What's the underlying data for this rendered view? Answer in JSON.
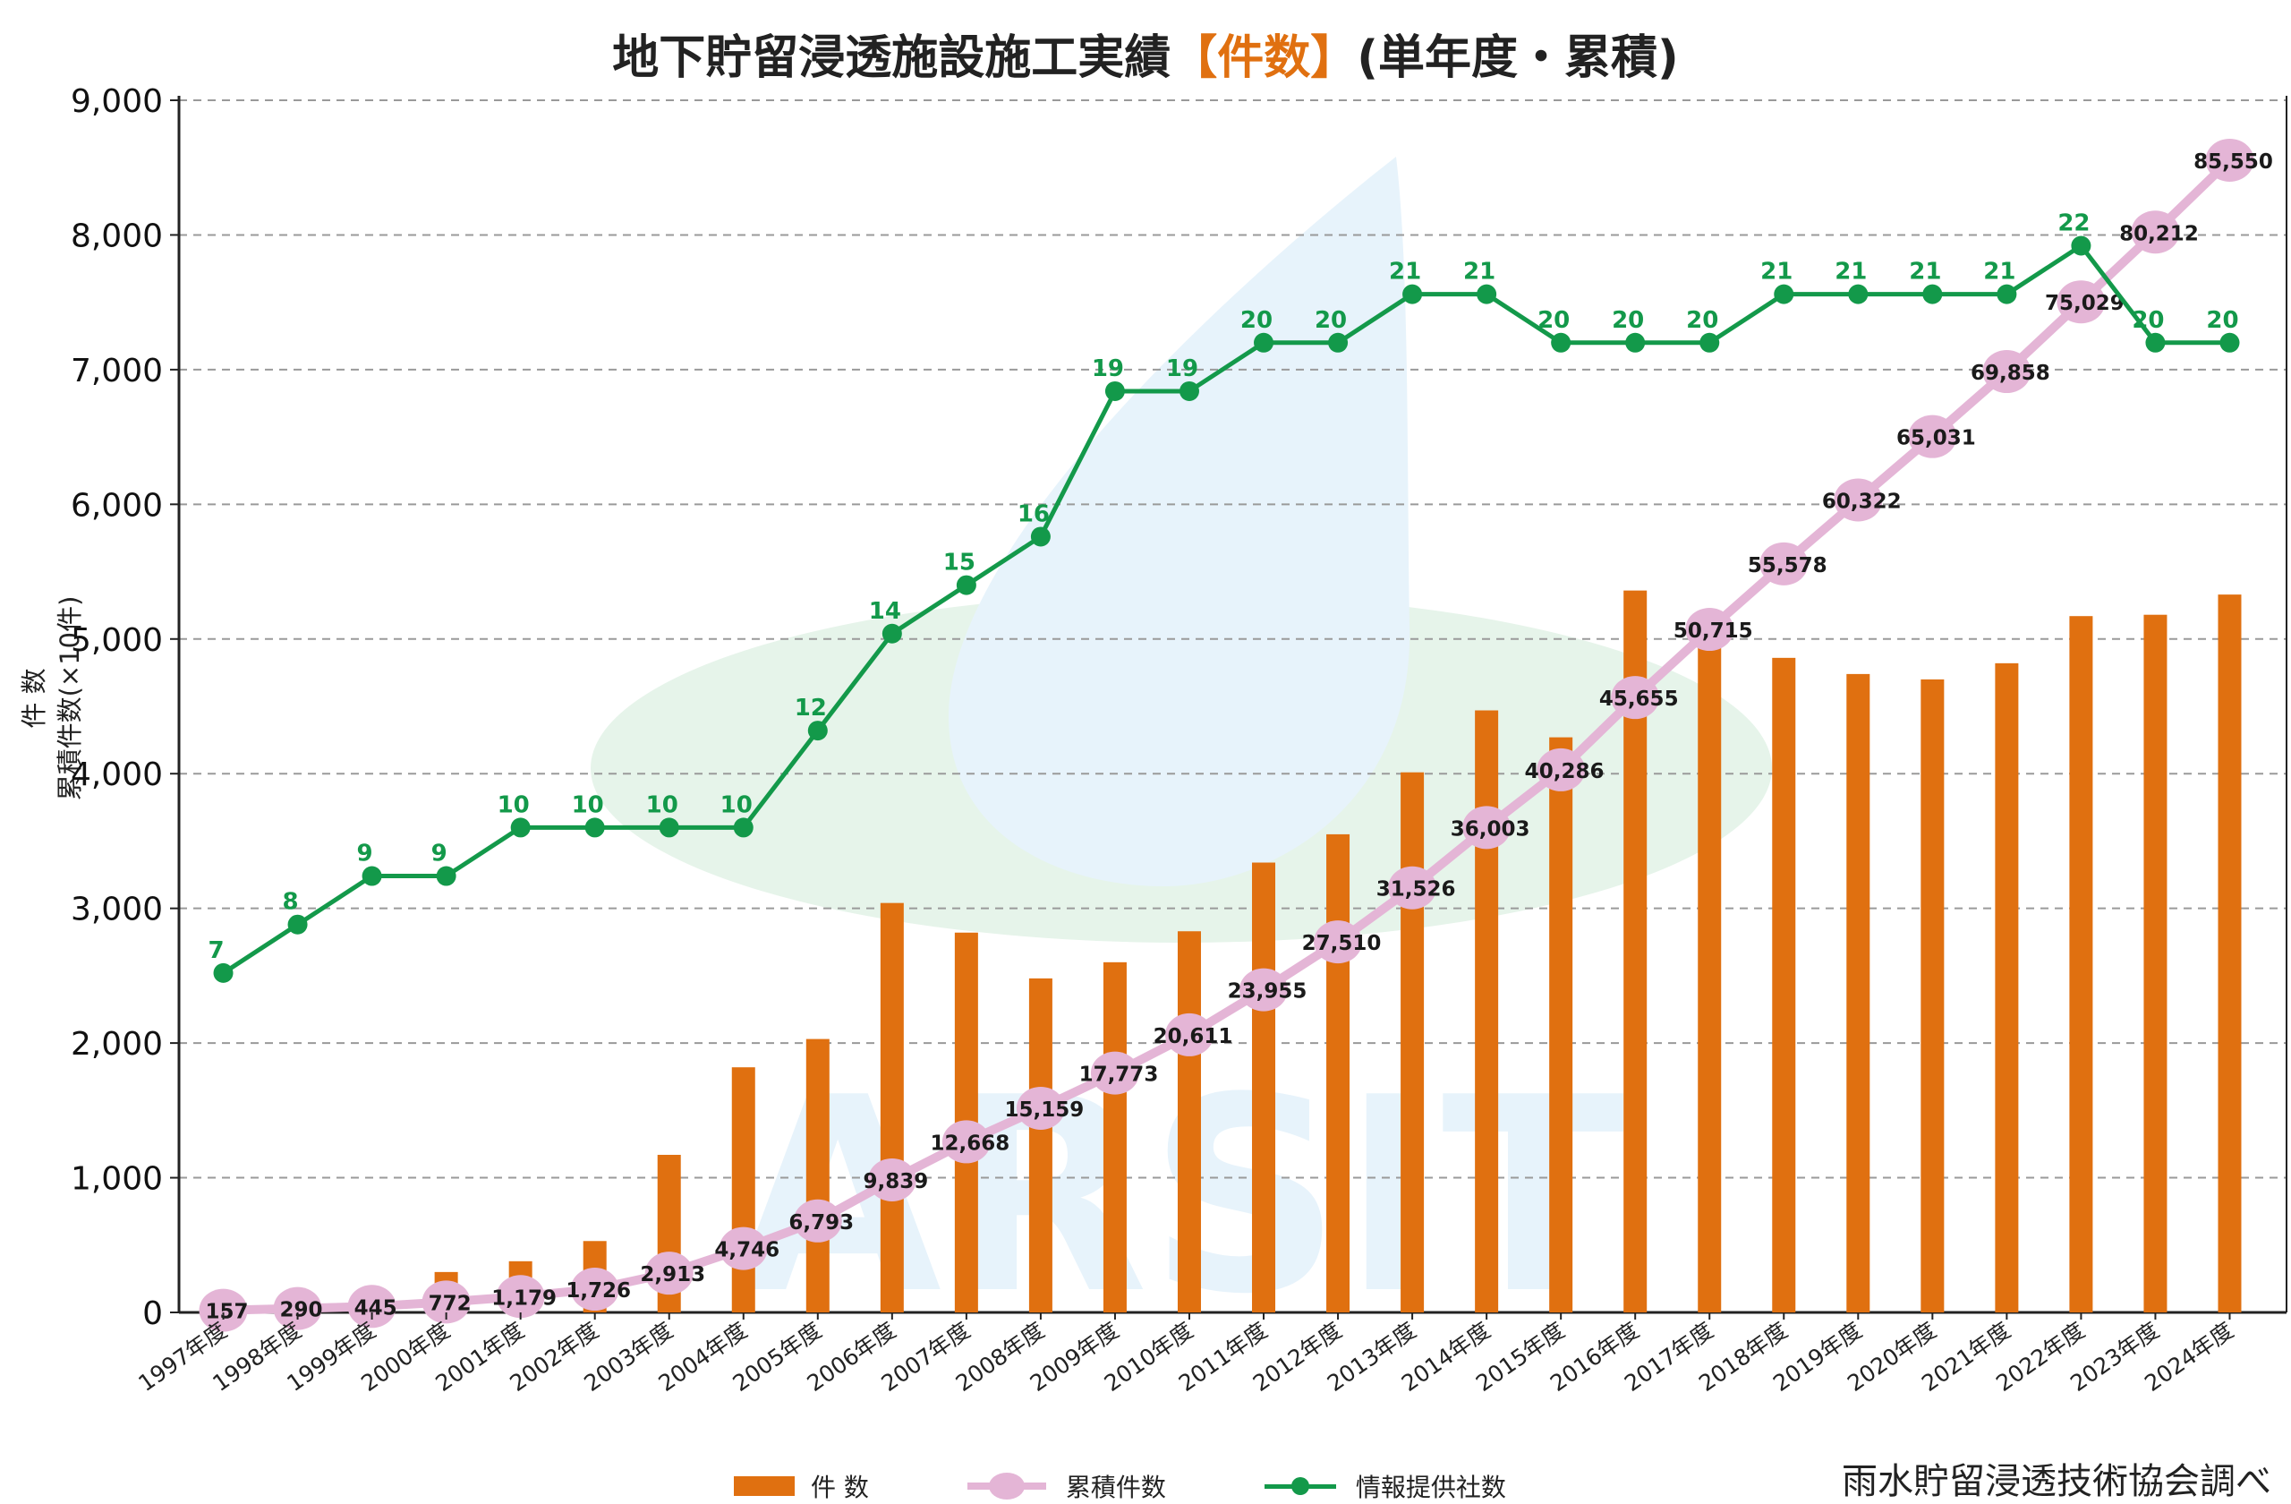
{
  "title": {
    "before": "地下貯留浸透施設施工実績",
    "highlight": "【件数】",
    "after": "(単年度・累積)"
  },
  "y_axis_label": {
    "line1": "件 数",
    "line2": "累積件数(×10件)"
  },
  "legend": {
    "bar": "件 数",
    "cumulative": "累積件数",
    "providers": "情報提供社数"
  },
  "source": "雨水貯留浸透技術協会調べ",
  "colors": {
    "bar": "#e07010",
    "cumulative": "#e4b5d6",
    "providers": "#13994a",
    "highlight": "#e07010"
  },
  "chart_data": {
    "type": "bar",
    "categories": [
      "1997年度",
      "1998年度",
      "1999年度",
      "2000年度",
      "2001年度",
      "2002年度",
      "2003年度",
      "2004年度",
      "2005年度",
      "2006年度",
      "2007年度",
      "2008年度",
      "2009年度",
      "2010年度",
      "2011年度",
      "2012年度",
      "2013年度",
      "2014年度",
      "2015年度",
      "2016年度",
      "2017年度",
      "2018年度",
      "2019年度",
      "2020年度",
      "2021年度",
      "2022年度",
      "2023年度",
      "2024年度"
    ],
    "ylim": [
      0,
      9000
    ],
    "yticks": [
      "0",
      "1,000",
      "2,000",
      "3,000",
      "4,000",
      "5,000",
      "6,000",
      "7,000",
      "8,000",
      "9,000"
    ],
    "series": [
      {
        "name": "件 数",
        "type": "bar",
        "values": [
          20,
          20,
          20,
          300,
          380,
          530,
          1170,
          1820,
          2030,
          3040,
          2820,
          2480,
          2600,
          2830,
          3340,
          3550,
          4010,
          4470,
          4270,
          5360,
          5040,
          4860,
          4740,
          4700,
          4820,
          5170,
          5180,
          5330
        ]
      },
      {
        "name": "累積件数",
        "type": "line",
        "values": [
          15.7,
          29.0,
          44.5,
          77.2,
          117.9,
          172.6,
          291.3,
          474.6,
          679.3,
          983.9,
          1266.8,
          1515.9,
          1777.3,
          2061.1,
          2395.5,
          2751.0,
          3152.6,
          3600.3,
          4028.6,
          4565.5,
          5071.5,
          5557.8,
          6032.2,
          6503.1,
          6985.8,
          7502.9,
          8021.2,
          8555.0
        ],
        "labels": [
          "157",
          "290",
          "445",
          "772",
          "1,179",
          "1,726",
          "2,913",
          "4,746",
          "6,793",
          "9,839",
          "12,668",
          "15,159",
          "17,773",
          "20,611",
          "23,955",
          "27,510",
          "31,526",
          "36,003",
          "40,286",
          "45,655",
          "50,715",
          "55,578",
          "60,322",
          "65,031",
          "69,858",
          "75,029",
          "80,212",
          "85,550"
        ]
      },
      {
        "name": "情報提供社数",
        "type": "line",
        "values": [
          7,
          8,
          9,
          9,
          10,
          10,
          10,
          10,
          12,
          14,
          15,
          16,
          19,
          19,
          20,
          20,
          21,
          21,
          20,
          20,
          20,
          21,
          21,
          21,
          21,
          22,
          20,
          20
        ],
        "labels": [
          "7",
          "8",
          "9",
          "9",
          "10",
          "10",
          "10",
          "10",
          "12",
          "14",
          "15",
          "16",
          "19",
          "19",
          "20",
          "20",
          "21",
          "21",
          "20",
          "20",
          "20",
          "21",
          "21",
          "21",
          "21",
          "22",
          "20",
          "20"
        ]
      }
    ],
    "grid": true
  }
}
